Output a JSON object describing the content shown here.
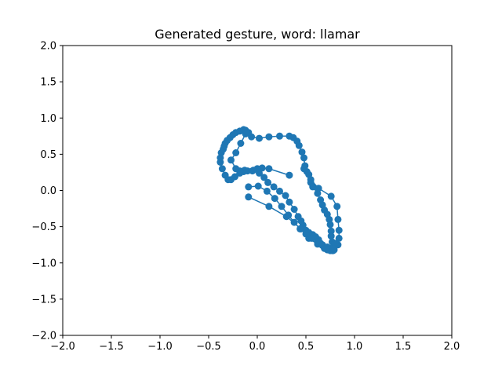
{
  "chart_data": {
    "type": "line",
    "title": "Generated gesture, word: llamar",
    "xlabel": "",
    "ylabel": "",
    "xlim": [
      -2.0,
      2.0
    ],
    "ylim": [
      -2.0,
      2.0
    ],
    "xticks": [
      "−2.0",
      "−1.5",
      "−1.0",
      "−0.5",
      "0.0",
      "0.5",
      "1.0",
      "1.5",
      "2.0"
    ],
    "yticks": [
      "2.0",
      "1.5",
      "1.0",
      "0.5",
      "0.0",
      "−0.5",
      "−1.0",
      "−1.5",
      "−2.0"
    ],
    "xtick_values": [
      -2.0,
      -1.5,
      -1.0,
      -0.5,
      0.0,
      0.5,
      1.0,
      1.5,
      2.0
    ],
    "ytick_values": [
      2.0,
      1.5,
      1.0,
      0.5,
      0.0,
      -0.5,
      -1.0,
      -1.5,
      -2.0
    ],
    "grid": false,
    "legend": "none",
    "series": [
      {
        "color": "#1f77b4",
        "marker": "circle",
        "points": [
          [
            0.33,
            0.21
          ],
          [
            0.12,
            0.3
          ],
          [
            0.05,
            0.31
          ],
          [
            0.0,
            0.3
          ],
          [
            -0.05,
            0.27
          ],
          [
            -0.1,
            0.27
          ],
          [
            -0.14,
            0.26
          ],
          [
            -0.18,
            0.24
          ],
          [
            -0.23,
            0.19
          ],
          [
            -0.27,
            0.15
          ],
          [
            -0.3,
            0.15
          ],
          [
            -0.33,
            0.21
          ],
          [
            -0.36,
            0.3
          ],
          [
            -0.38,
            0.39
          ],
          [
            -0.38,
            0.45
          ],
          [
            -0.37,
            0.52
          ],
          [
            -0.35,
            0.57
          ],
          [
            -0.34,
            0.61
          ],
          [
            -0.33,
            0.65
          ],
          [
            -0.31,
            0.69
          ],
          [
            -0.28,
            0.73
          ],
          [
            -0.25,
            0.77
          ],
          [
            -0.22,
            0.8
          ],
          [
            -0.18,
            0.82
          ],
          [
            -0.14,
            0.84
          ],
          [
            -0.12,
            0.83
          ],
          [
            -0.09,
            0.8
          ],
          [
            -0.06,
            0.74
          ],
          [
            0.02,
            0.72
          ],
          [
            0.12,
            0.74
          ],
          [
            0.23,
            0.75
          ],
          [
            0.33,
            0.75
          ],
          [
            0.37,
            0.73
          ],
          [
            0.41,
            0.68
          ],
          [
            0.43,
            0.62
          ],
          [
            0.46,
            0.53
          ],
          [
            0.48,
            0.45
          ],
          [
            0.49,
            0.34
          ],
          [
            0.51,
            0.26
          ],
          [
            0.53,
            0.22
          ],
          [
            0.55,
            0.11
          ],
          [
            0.57,
            0.05
          ],
          [
            0.62,
            -0.04
          ],
          [
            0.65,
            -0.13
          ],
          [
            0.67,
            -0.2
          ],
          [
            0.69,
            -0.27
          ],
          [
            0.72,
            -0.33
          ],
          [
            0.74,
            -0.4
          ],
          [
            0.75,
            -0.47
          ],
          [
            0.76,
            -0.56
          ],
          [
            0.76,
            -0.63
          ],
          [
            0.77,
            -0.71
          ],
          [
            0.78,
            -0.78
          ],
          [
            0.79,
            -0.82
          ],
          [
            0.78,
            -0.83
          ],
          [
            0.77,
            -0.83
          ],
          [
            0.75,
            -0.83
          ],
          [
            0.72,
            -0.82
          ],
          [
            0.69,
            -0.8
          ],
          [
            0.67,
            -0.76
          ],
          [
            0.65,
            -0.73
          ],
          [
            0.63,
            -0.68
          ],
          [
            0.6,
            -0.64
          ],
          [
            0.57,
            -0.61
          ],
          [
            0.53,
            -0.58
          ],
          [
            0.5,
            -0.55
          ],
          [
            0.47,
            -0.48
          ],
          [
            0.45,
            -0.42
          ],
          [
            0.42,
            -0.36
          ],
          [
            0.38,
            -0.26
          ],
          [
            0.33,
            -0.16
          ],
          [
            0.29,
            -0.07
          ],
          [
            0.23,
            -0.01
          ],
          [
            0.17,
            0.05
          ],
          [
            0.11,
            0.11
          ],
          [
            0.07,
            0.18
          ],
          [
            0.02,
            0.24
          ],
          [
            -0.04,
            0.28
          ],
          [
            -0.13,
            0.28
          ],
          [
            -0.18,
            0.27
          ],
          [
            -0.22,
            0.3
          ],
          [
            -0.27,
            0.42
          ],
          [
            -0.22,
            0.52
          ],
          [
            -0.17,
            0.65
          ],
          [
            -0.12,
            0.78
          ],
          [
            -0.11,
            0.8
          ]
        ]
      },
      {
        "color": "#1f77b4",
        "marker": "circle",
        "points": [
          [
            -0.09,
            -0.09
          ],
          [
            0.12,
            -0.22
          ],
          [
            0.3,
            -0.36
          ],
          [
            0.45,
            -0.53
          ],
          [
            0.53,
            -0.66
          ],
          [
            0.62,
            -0.74
          ],
          [
            0.7,
            -0.79
          ],
          [
            0.77,
            -0.81
          ],
          [
            0.83,
            -0.75
          ],
          [
            0.84,
            -0.66
          ],
          [
            0.84,
            -0.55
          ],
          [
            0.83,
            -0.4
          ],
          [
            0.82,
            -0.22
          ],
          [
            0.76,
            -0.08
          ],
          [
            0.63,
            0.03
          ],
          [
            0.55,
            0.15
          ],
          [
            0.48,
            0.3
          ]
        ]
      },
      {
        "color": "#1f77b4",
        "marker": "circle",
        "points": [
          [
            -0.09,
            0.05
          ],
          [
            0.01,
            0.06
          ],
          [
            0.1,
            -0.01
          ],
          [
            0.18,
            -0.11
          ],
          [
            0.25,
            -0.22
          ],
          [
            0.32,
            -0.34
          ],
          [
            0.38,
            -0.44
          ],
          [
            0.44,
            -0.53
          ],
          [
            0.5,
            -0.6
          ],
          [
            0.56,
            -0.66
          ],
          [
            0.62,
            -0.71
          ],
          [
            0.67,
            -0.75
          ],
          [
            0.72,
            -0.78
          ],
          [
            0.78,
            -0.8
          ],
          [
            0.8,
            -0.73
          ]
        ]
      }
    ]
  }
}
